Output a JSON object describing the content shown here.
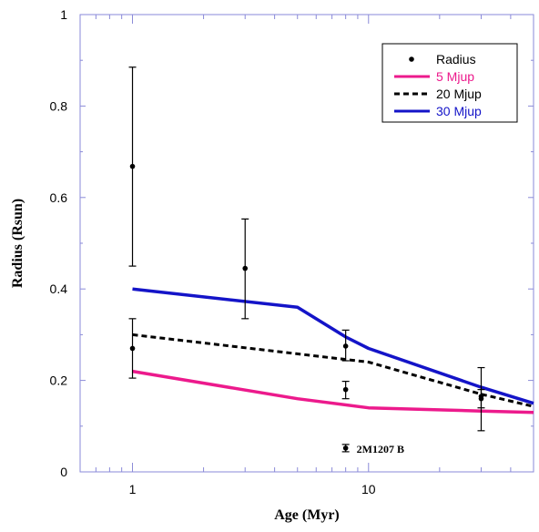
{
  "chart_data": {
    "type": "line",
    "xlabel": "Age (Myr)",
    "ylabel": "Radius (Rsun)",
    "xscale": "log",
    "xlim": [
      0.6,
      50
    ],
    "ylim": [
      0,
      1
    ],
    "xticks": [
      {
        "value": 1,
        "label": "1"
      },
      {
        "value": 10,
        "label": "10"
      }
    ],
    "yticks": [
      {
        "value": 0,
        "label": "0"
      },
      {
        "value": 0.2,
        "label": "0.2"
      },
      {
        "value": 0.4,
        "label": "0.4"
      },
      {
        "value": 0.6,
        "label": "0.6"
      },
      {
        "value": 0.8,
        "label": "0.8"
      },
      {
        "value": 1,
        "label": "1"
      }
    ],
    "legend_position": "top-right",
    "measurements": {
      "name": "Radius",
      "color": "#000000",
      "points": [
        {
          "x": 1,
          "y": 0.668,
          "ylow": 0.45,
          "yhigh": 0.885
        },
        {
          "x": 1,
          "y": 0.27,
          "ylow": 0.205,
          "yhigh": 0.335
        },
        {
          "x": 3,
          "y": 0.445,
          "ylow": 0.335,
          "yhigh": 0.553
        },
        {
          "x": 8,
          "y": 0.275,
          "ylow": 0.243,
          "yhigh": 0.31
        },
        {
          "x": 8,
          "y": 0.18,
          "ylow": 0.16,
          "yhigh": 0.198
        },
        {
          "x": 8,
          "y": 0.052,
          "ylow": 0.044,
          "yhigh": 0.06
        },
        {
          "x": 30,
          "y": 0.165,
          "ylow": 0.09,
          "yhigh": 0.228
        },
        {
          "x": 30,
          "y": 0.16,
          "ylow": 0.14,
          "yhigh": 0.18
        }
      ]
    },
    "series": [
      {
        "name": "5 Mjup",
        "color": "#ec1a8c",
        "style": "solid",
        "x": [
          1,
          5,
          10,
          30,
          50
        ],
        "y": [
          0.22,
          0.16,
          0.14,
          0.133,
          0.13
        ]
      },
      {
        "name": "20 Mjup",
        "color": "#000000",
        "style": "dashed",
        "x": [
          1,
          10,
          30,
          50
        ],
        "y": [
          0.3,
          0.24,
          0.17,
          0.143
        ]
      },
      {
        "name": "30 Mjup",
        "color": "#1414c8",
        "style": "solid",
        "x": [
          1,
          5,
          8,
          10,
          30,
          50
        ],
        "y": [
          0.4,
          0.36,
          0.295,
          0.27,
          0.185,
          0.15
        ]
      }
    ],
    "annotations": [
      {
        "text": "2M1207 B",
        "x": 8,
        "y": 0.052
      }
    ]
  }
}
